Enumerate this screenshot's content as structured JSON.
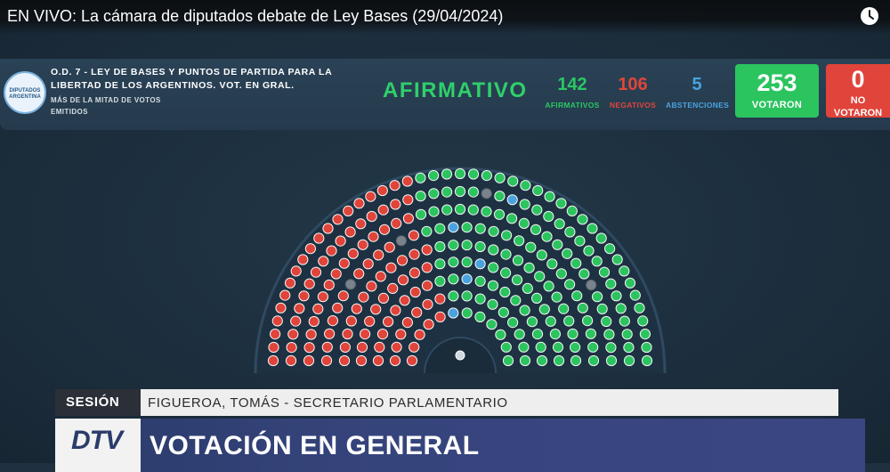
{
  "video": {
    "title": "EN VIVO: La cámara de diputados debate de Ley Bases (29/04/2024)",
    "watch_later_icon": "clock-icon"
  },
  "vote_panel": {
    "logo_text": "DIPUTADOS ARGENTINA",
    "motion_title": "O.D. 7 - LEY DE BASES Y PUNTOS DE PARTIDA PARA LA LIBERTAD DE LOS ARGENTINOS. VOT. EN GRAL.",
    "majority_note": "MÁS DE LA MITAD DE VOTOS EMITIDOS",
    "result": "AFIRMATIVO",
    "affirmative": {
      "value": "142",
      "label": "AFIRMATIVOS"
    },
    "negative": {
      "value": "106",
      "label": "NEGATIVOS"
    },
    "abstention": {
      "value": "5",
      "label": "ABSTENCIONES"
    },
    "voted": {
      "value": "253",
      "label": "VOTARON"
    },
    "not_voted": {
      "value": "0",
      "label": "NO VOTARON"
    },
    "colors": {
      "affirmative": "#2bc45f",
      "negative": "#e0443a",
      "abstention": "#4aa3e0",
      "absent": "#7a838c"
    }
  },
  "hemicycle": {
    "seat_counts": {
      "affirmative": 142,
      "negative": 106,
      "abstention": 5,
      "absent": 4
    }
  },
  "lower_third": {
    "session_label": "SESIÓN",
    "speaker": "FIGUEROA, TOMÁS - SECRETARIO PARLAMENTARIO",
    "channel_logo": "DTV",
    "heading": "VOTACIÓN EN GENERAL"
  }
}
